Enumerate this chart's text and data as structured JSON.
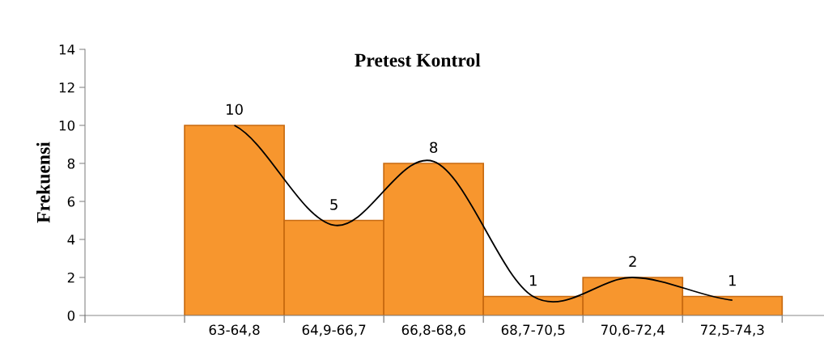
{
  "chart_data": {
    "type": "bar",
    "title": "Pretest Kontrol",
    "ylabel": "Frekuensi",
    "categories": [
      null,
      "63-64,8",
      "64,9-66,7",
      "66,8-68,6",
      "68,7-70,5",
      "70,6-72,4",
      "72,5-74,3"
    ],
    "series": [
      {
        "color": "#f7962e",
        "values": [
          null,
          10,
          5,
          8,
          1,
          2,
          1
        ],
        "value_labels": [
          null,
          "10",
          "5",
          "8",
          "1",
          "2",
          "1"
        ]
      },
      {
        "type": "line",
        "color": "#000000",
        "values": [
          null,
          10,
          4.75,
          8.1,
          1.0,
          2.0,
          0.8
        ]
      }
    ],
    "ylim": [
      0,
      14
    ],
    "yticks": [
      0,
      2,
      4,
      6,
      8,
      10,
      12,
      14
    ],
    "grid": false,
    "legend": false,
    "marker": "none",
    "line_style": "solid"
  }
}
